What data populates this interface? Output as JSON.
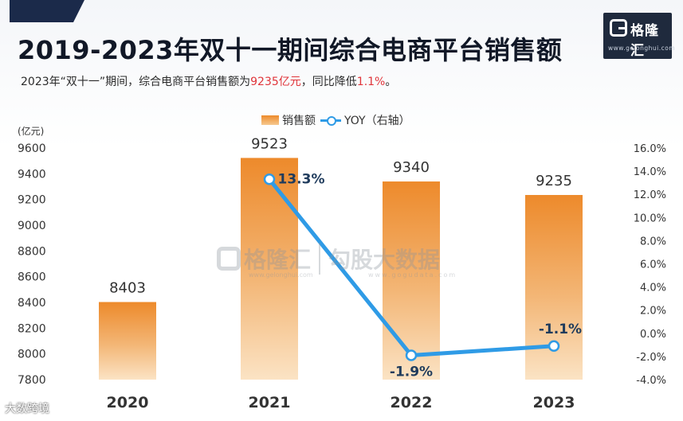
{
  "header": {
    "title": "2019-2023年双十一期间综合电商平台销售额",
    "subtitle_prefix": "2023年“双十一”期间，综合电商平台销售额为",
    "subtitle_value": "9235亿元",
    "subtitle_middle": "，同比降低",
    "subtitle_pct": "1.1%",
    "subtitle_suffix": "。"
  },
  "logo": {
    "name": "格隆汇",
    "url": "www.gelonghui.com"
  },
  "watermark": {
    "brand1": "格隆汇",
    "brand1_url": "www.gelonghui.com",
    "brand2": "勾股大数据",
    "brand2_url": "www.gogudata.com"
  },
  "footer_watermark": "大数跨境",
  "colors": {
    "bar_top": "#ed8a2b",
    "bar_bottom": "#fbe3c4",
    "line": "#2f9be6",
    "title": "#111827",
    "highlight": "#e0343a"
  },
  "chart_data": {
    "type": "bar",
    "categories": [
      "2020",
      "2021",
      "2022",
      "2023"
    ],
    "series": [
      {
        "name": "销售额",
        "type": "bar",
        "axis": "left",
        "values": [
          8403,
          9523,
          9340,
          9235
        ],
        "labels": [
          "8403",
          "9523",
          "9340",
          "9235"
        ]
      },
      {
        "name": "YOY（右轴）",
        "type": "line",
        "axis": "right",
        "values": [
          null,
          13.3,
          -1.9,
          -1.1
        ],
        "labels": [
          "",
          "13.3%",
          "-1.9%",
          "-1.1%"
        ]
      }
    ],
    "y_left": {
      "unit": "(亿元)",
      "min": 7800,
      "max": 9600,
      "ticks": [
        "9600",
        "9400",
        "9200",
        "9000",
        "8800",
        "8600",
        "8400",
        "8200",
        "8000",
        "7800"
      ]
    },
    "y_right": {
      "min": -4,
      "max": 16,
      "ticks": [
        "16.0%",
        "14.0%",
        "12.0%",
        "10.0%",
        "8.0%",
        "6.0%",
        "4.0%",
        "2.0%",
        "0.0%",
        "-2.0%",
        "-4.0%"
      ]
    },
    "legend_position": "top-center",
    "grid": false
  }
}
